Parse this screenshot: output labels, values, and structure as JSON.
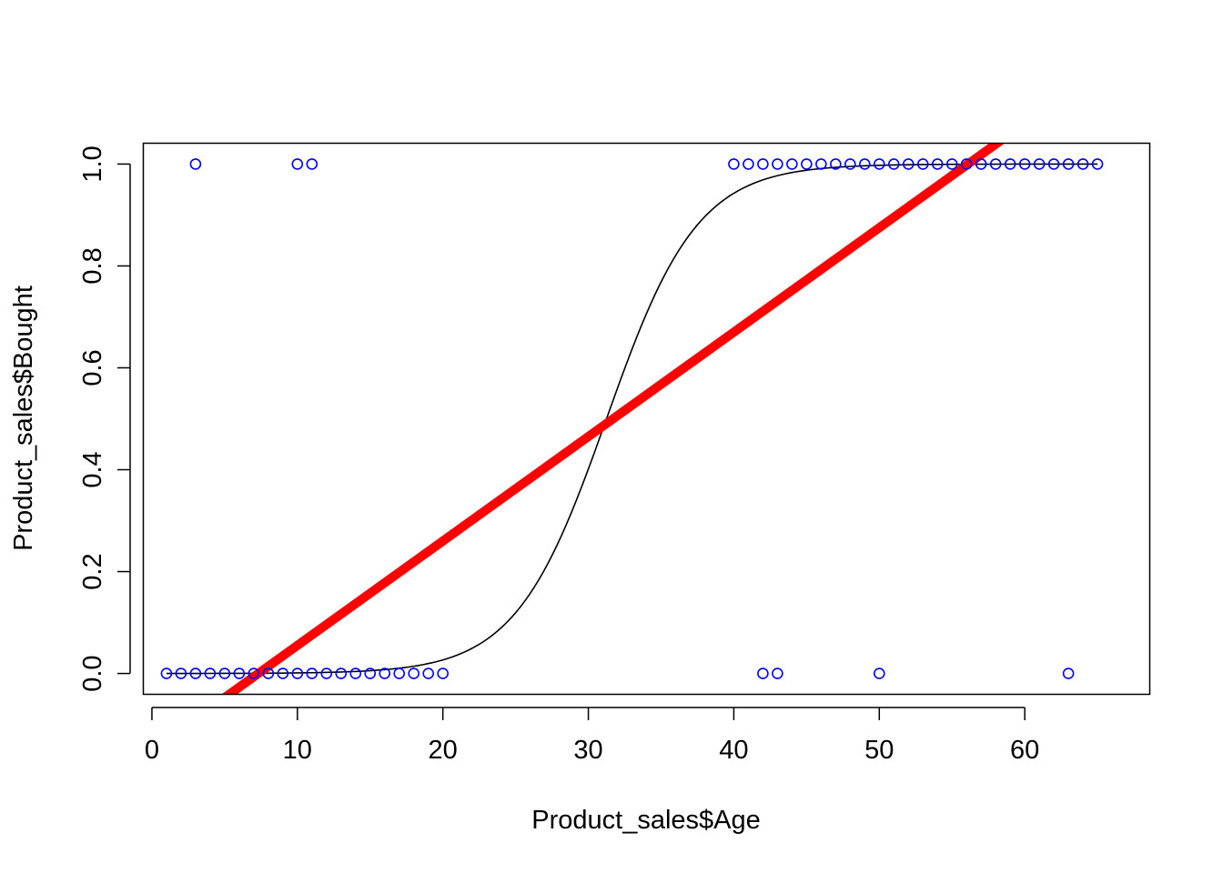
{
  "chart_data": {
    "type": "scatter",
    "title": "",
    "xlabel": "Product_sales$Age",
    "ylabel": "Product_sales$Bought",
    "xlim": [
      -0.56,
      68.56
    ],
    "ylim": [
      -0.04,
      1.04
    ],
    "x_ticks": [
      0,
      10,
      20,
      30,
      40,
      50,
      60
    ],
    "y_ticks": [
      0.0,
      0.2,
      0.4,
      0.6,
      0.8,
      1.0
    ],
    "x_tick_labels": [
      "0",
      "10",
      "20",
      "30",
      "40",
      "50",
      "60"
    ],
    "y_tick_labels": [
      "0.0",
      "0.2",
      "0.4",
      "0.6",
      "0.8",
      "1.0"
    ],
    "grid": false,
    "points": {
      "color": "#0000ff",
      "bought_1_ages": [
        3,
        10,
        11,
        40,
        41,
        42,
        43,
        44,
        45,
        46,
        47,
        48,
        49,
        50,
        51,
        52,
        53,
        54,
        55,
        56,
        57,
        58,
        59,
        60,
        61,
        62,
        63,
        64,
        65
      ],
      "bought_0_ages": [
        1,
        2,
        3,
        4,
        5,
        6,
        7,
        8,
        9,
        10,
        11,
        12,
        13,
        14,
        15,
        16,
        17,
        18,
        19,
        20,
        42,
        43,
        50,
        63
      ]
    },
    "logistic_curve": {
      "color": "#000000",
      "intercept": -10.0,
      "slope": 0.32
    },
    "linear_fit": {
      "color": "#ff0000",
      "intercept": -0.15,
      "slope": 0.0205
    }
  }
}
